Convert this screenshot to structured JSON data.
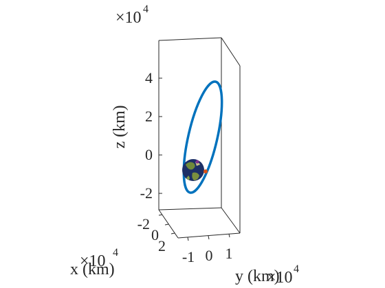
{
  "chart_data": {
    "type": "line",
    "projection": "3d",
    "x_axis": {
      "label": "x (km)",
      "tick_labels": [
        "-2",
        "0",
        "2"
      ],
      "multiplier_base": "×10",
      "multiplier_exponent": "4"
    },
    "y_axis": {
      "label": "y (km)",
      "tick_labels": [
        "-1",
        "0",
        "1"
      ],
      "multiplier_base": "×10",
      "multiplier_exponent": "4"
    },
    "z_axis": {
      "label": "z (km)",
      "tick_labels": [
        "4",
        "2",
        "0",
        "-2"
      ],
      "tick_values": [
        4,
        2,
        0,
        -2
      ],
      "multiplier_base": "×10",
      "multiplier_exponent": "4"
    },
    "zlim": [
      -3.2,
      5.8
    ],
    "grid": false,
    "legend": "none",
    "series": [
      {
        "kind": "orbit",
        "color": "#0072BD",
        "z_min": -2.4,
        "z_max": 4.0
      }
    ],
    "markers": [
      {
        "kind": "planet-globe",
        "colors": [
          "#1c2f66",
          "#6f8a3a"
        ]
      },
      {
        "kind": "point",
        "color": "#d95319"
      },
      {
        "kind": "point",
        "color": "#7e2f8e"
      }
    ]
  }
}
